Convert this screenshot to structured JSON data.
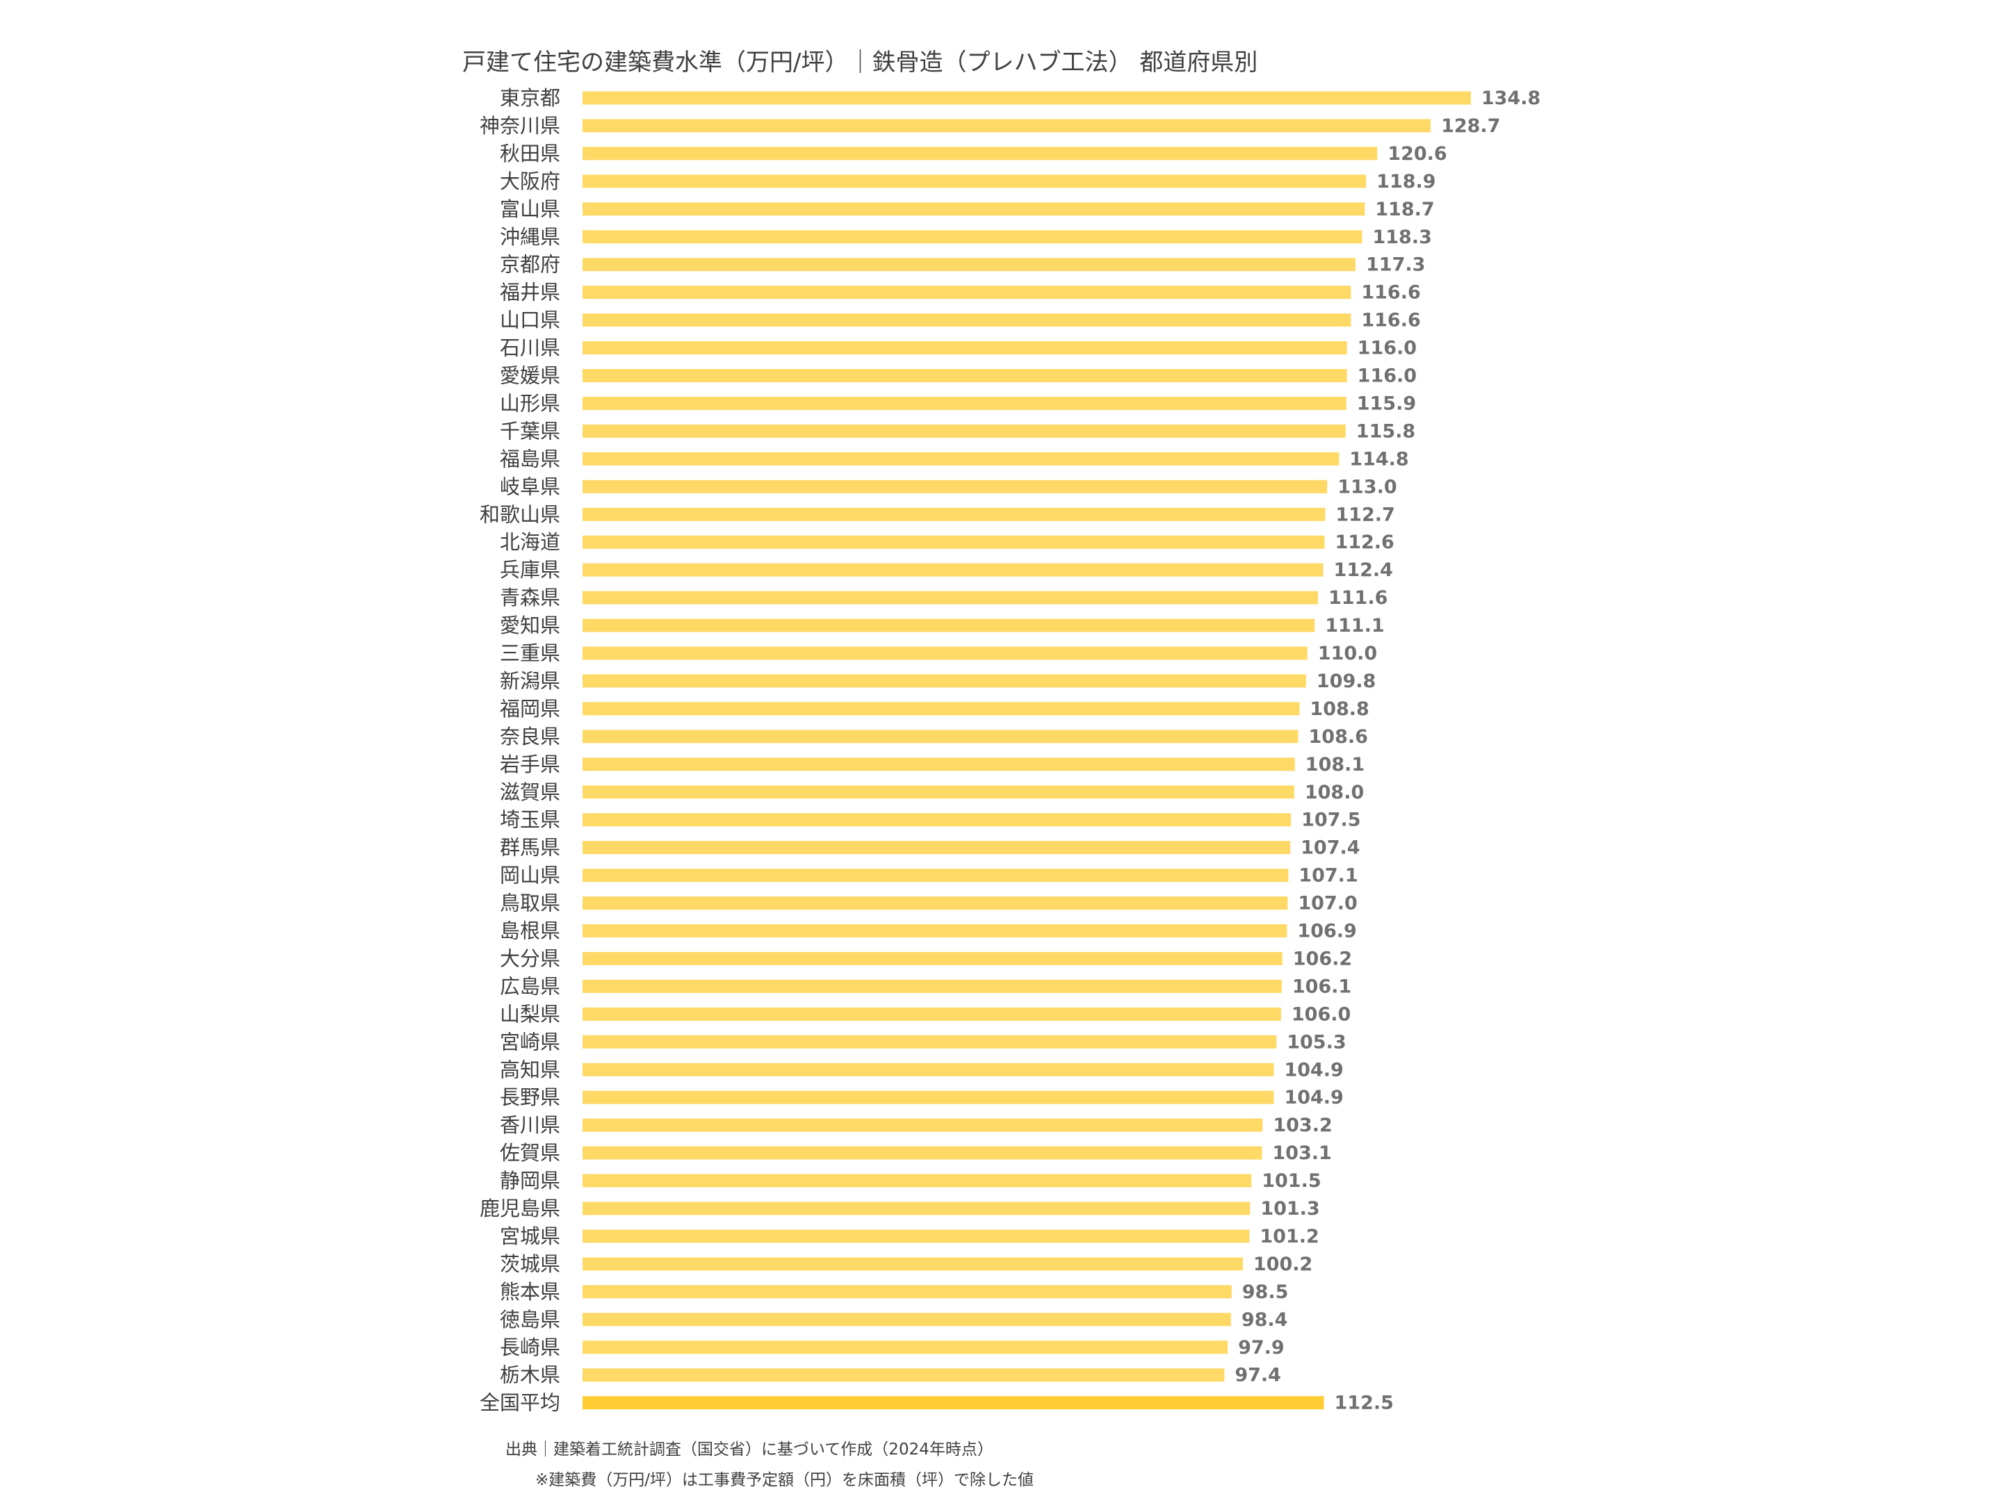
{
  "chart_data": {
    "type": "bar",
    "orientation": "horizontal",
    "title": "戸建て住宅の建築費水準（万円/坪）｜鉄骨造（プレハブ工法） 都道府県別",
    "categories": [
      "東京都",
      "神奈川県",
      "秋田県",
      "大阪府",
      "富山県",
      "沖縄県",
      "京都府",
      "福井県",
      "山口県",
      "石川県",
      "愛媛県",
      "山形県",
      "千葉県",
      "福島県",
      "岐阜県",
      "和歌山県",
      "北海道",
      "兵庫県",
      "青森県",
      "愛知県",
      "三重県",
      "新潟県",
      "福岡県",
      "奈良県",
      "岩手県",
      "滋賀県",
      "埼玉県",
      "群馬県",
      "岡山県",
      "鳥取県",
      "島根県",
      "大分県",
      "広島県",
      "山梨県",
      "宮崎県",
      "高知県",
      "長野県",
      "香川県",
      "佐賀県",
      "静岡県",
      "鹿児島県",
      "宮城県",
      "茨城県",
      "熊本県",
      "徳島県",
      "長崎県",
      "栃木県",
      "全国平均"
    ],
    "values": [
      134.8,
      128.7,
      120.6,
      118.9,
      118.7,
      118.3,
      117.3,
      116.6,
      116.6,
      116.0,
      116.0,
      115.9,
      115.8,
      114.8,
      113.0,
      112.7,
      112.6,
      112.4,
      111.6,
      111.1,
      110.0,
      109.8,
      108.8,
      108.6,
      108.1,
      108.0,
      107.5,
      107.4,
      107.1,
      107.0,
      106.9,
      106.2,
      106.1,
      106.0,
      105.3,
      104.9,
      104.9,
      103.2,
      103.1,
      101.5,
      101.3,
      101.2,
      100.2,
      98.5,
      98.4,
      97.9,
      97.4,
      112.5
    ],
    "value_labels": [
      "134.8",
      "128.7",
      "120.6",
      "118.9",
      "118.7",
      "118.3",
      "117.3",
      "116.6",
      "116.6",
      "116.0",
      "116.0",
      "115.9",
      "115.8",
      "114.8",
      "113.0",
      "112.7",
      "112.6",
      "112.4",
      "111.6",
      "111.1",
      "110.0",
      "109.8",
      "108.8",
      "108.6",
      "108.1",
      "108.0",
      "107.5",
      "107.4",
      "107.1",
      "107.0",
      "106.9",
      "106.2",
      "106.1",
      "106.0",
      "105.3",
      "104.9",
      "104.9",
      "103.2",
      "103.1",
      "101.5",
      "101.3",
      "101.2",
      "100.2",
      "98.5",
      "98.4",
      "97.9",
      "97.4",
      "112.5"
    ],
    "highlight_category": "全国平均",
    "xlim": [
      0,
      134.8
    ],
    "grid": false,
    "legend": "none",
    "bar_color": "#FFD966",
    "highlight_color": "#FFCC33"
  },
  "notes": {
    "source": "出典｜建築着工統計調査（国交省）に基づいて作成（2024年時点）",
    "method": "※建築費（万円/坪）は工事費予定額（円）を床面積（坪）で除した値"
  }
}
